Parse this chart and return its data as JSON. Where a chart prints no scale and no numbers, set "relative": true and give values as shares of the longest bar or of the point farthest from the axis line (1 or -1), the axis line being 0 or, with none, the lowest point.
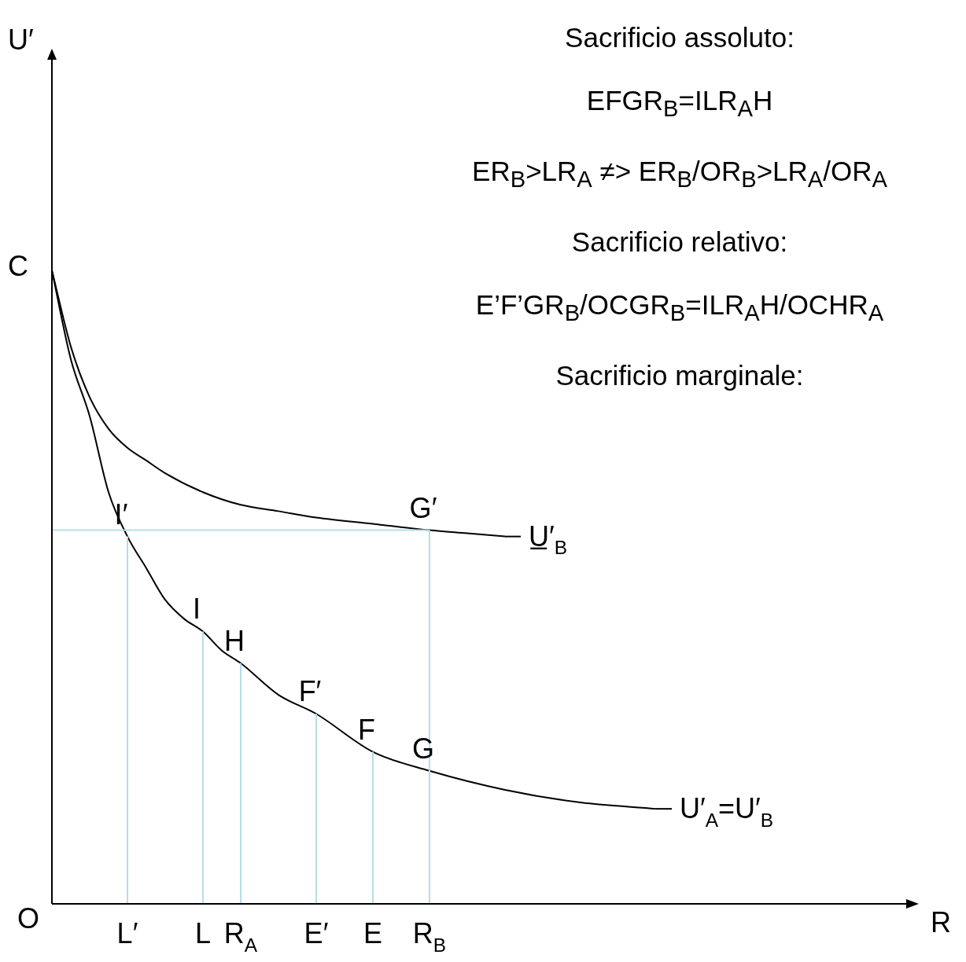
{
  "chart_data": {
    "type": "line",
    "relative": true,
    "xlabel": "R",
    "legend": "right",
    "categories": [
      null,
      null,
      null,
      null,
      "L′",
      null,
      null,
      null,
      "L",
      null,
      "R$_{A}$",
      null,
      null,
      null,
      "E′",
      null,
      null,
      "E",
      null,
      null,
      "R$_{B}$",
      null,
      null,
      null,
      null,
      null,
      null,
      null,
      null,
      null,
      null,
      null,
      null,
      null,
      null,
      null,
      null,
      null,
      null,
      null,
      null,
      null,
      null,
      null,
      null,
      null
    ],
    "series": [
      {
        "name": "U′$_{A}$=U′$_{B}$",
        "color": "#000000",
        "values": [
          1.0,
          0.86,
          0.77,
          0.65,
          0.58,
          0.53,
          0.48,
          0.45,
          0.43,
          0.4,
          0.38,
          null,
          0.33,
          null,
          0.3,
          null,
          null,
          0.24,
          null,
          null,
          0.21,
          null,
          null,
          null,
          0.18,
          null,
          null,
          null,
          0.16,
          null,
          null,
          null,
          0.15,
          null,
          null,
          null,
          null,
          null,
          null,
          null,
          null,
          null,
          null,
          null,
          null,
          null
        ]
      },
      {
        "name": "U̲′$_{B}$",
        "color": "#000000",
        "values": [
          1.0,
          0.88,
          0.8,
          0.75,
          0.72,
          0.7,
          0.68,
          null,
          0.65,
          null,
          0.63,
          null,
          0.62,
          null,
          0.61,
          null,
          null,
          0.6,
          null,
          null,
          0.59,
          null,
          0.585,
          null,
          0.58,
          null,
          null,
          null,
          null,
          null,
          null,
          null,
          null,
          null,
          null,
          null,
          null,
          null,
          null,
          null,
          null,
          null,
          null,
          null,
          null,
          null
        ]
      }
    ],
    "ref_lines": [
      {
        "axis": "y",
        "value": 0.59,
        "color": "#b7dde8"
      }
    ],
    "annotations": [
      "Sacrificio assoluto:",
      "EFGR$_{B}$=ILR$_{A}$H",
      "ER$_{B}$>LR$_{A}$  ≠>  ER$_{B}$/OR$_{B}$>LR$_{A}$/OR$_{A}$",
      "Sacrificio relativo:",
      "E’F’GR$_{B}$/OCGR$_{B}$=ILR$_{A}$H/OCHR$_{A}$",
      "Sacrificio marginale:",
      "C",
      "O",
      "U′",
      {
        "text": "I′",
        "x": "L′",
        "y": 0.58
      },
      {
        "text": "G′",
        "x": "R$_{B}$",
        "y": 0.59
      },
      {
        "text": "I",
        "x": "L",
        "y": 0.43
      },
      {
        "text": "H",
        "x": "R$_{A}$",
        "y": 0.38
      },
      {
        "text": "F′",
        "x": "E′",
        "y": 0.3
      },
      {
        "text": "F",
        "x": "E",
        "y": 0.24
      },
      {
        "text": "G",
        "x": "R$_{B}$",
        "y": 0.21
      }
    ]
  }
}
